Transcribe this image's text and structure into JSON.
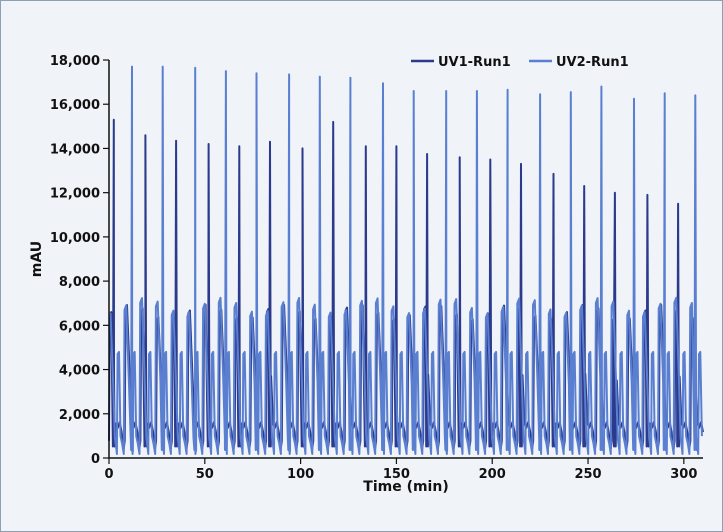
{
  "chart_data": {
    "type": "line",
    "xlabel": "Time (min)",
    "ylabel": "mAU",
    "xlim": [
      0,
      310
    ],
    "ylim": [
      0,
      18000
    ],
    "x_ticks": [
      0,
      50,
      100,
      150,
      200,
      250,
      300
    ],
    "x_tick_labels": [
      "0",
      "50",
      "100",
      "150",
      "200",
      "250",
      "300"
    ],
    "y_ticks": [
      0,
      2000,
      4000,
      6000,
      8000,
      10000,
      12000,
      14000,
      16000,
      18000
    ],
    "y_tick_labels": [
      "0",
      "2,000",
      "4,000",
      "6,000",
      "8,000",
      "10,000",
      "12,000",
      "14,000",
      "16,000",
      "18,000"
    ],
    "grid": false,
    "legend_position": "top-right",
    "series": [
      {
        "name": "UV1-Run1",
        "color": "#2b3a8c",
        "cycle_period_min": 8.2,
        "plateau_level": 6600,
        "baseline_level": 1300,
        "tall_peaks": [
          {
            "time": 2.5,
            "height": 15300
          },
          {
            "time": 19,
            "height": 14600
          },
          {
            "time": 35,
            "height": 14350
          },
          {
            "time": 52,
            "height": 14200
          },
          {
            "time": 68,
            "height": 14100
          },
          {
            "time": 84,
            "height": 14300
          },
          {
            "time": 101,
            "height": 14000
          },
          {
            "time": 117,
            "height": 15200
          },
          {
            "time": 134,
            "height": 14100
          },
          {
            "time": 150,
            "height": 14100
          },
          {
            "time": 166,
            "height": 13750
          },
          {
            "time": 183,
            "height": 13600
          },
          {
            "time": 199,
            "height": 13500
          },
          {
            "time": 215,
            "height": 13300
          },
          {
            "time": 232,
            "height": 12850
          },
          {
            "time": 248,
            "height": 12300
          },
          {
            "time": 264,
            "height": 12000
          },
          {
            "time": 281,
            "height": 11900
          },
          {
            "time": 297,
            "height": 11500
          }
        ]
      },
      {
        "name": "UV2-Run1",
        "color": "#5b7fd0",
        "cycle_period_min": 8.2,
        "plateau_level": 6900,
        "secondary_level": 4800,
        "baseline_level": 900,
        "tall_peaks": [
          {
            "time": 12,
            "height": 17700
          },
          {
            "time": 28,
            "height": 17700
          },
          {
            "time": 45,
            "height": 17650
          },
          {
            "time": 61,
            "height": 17500
          },
          {
            "time": 77,
            "height": 17400
          },
          {
            "time": 94,
            "height": 17350
          },
          {
            "time": 110,
            "height": 17250
          },
          {
            "time": 126,
            "height": 17200
          },
          {
            "time": 143,
            "height": 16950
          },
          {
            "time": 159,
            "height": 16600
          },
          {
            "time": 176,
            "height": 16600
          },
          {
            "time": 192,
            "height": 16600
          },
          {
            "time": 208,
            "height": 16650
          },
          {
            "time": 225,
            "height": 16450
          },
          {
            "time": 241,
            "height": 16550
          },
          {
            "time": 257,
            "height": 16800
          },
          {
            "time": 274,
            "height": 16250
          },
          {
            "time": 290,
            "height": 16500
          },
          {
            "time": 306,
            "height": 16400
          }
        ]
      }
    ]
  }
}
